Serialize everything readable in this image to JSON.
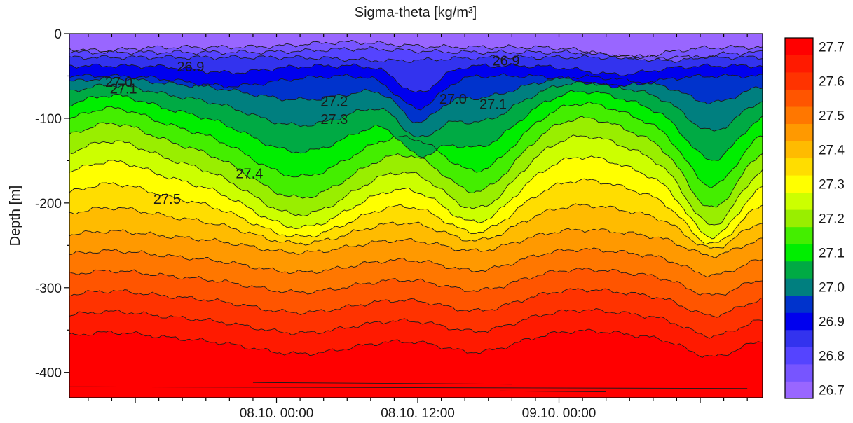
{
  "chart_data": {
    "type": "heatmap",
    "title": "Sigma-theta [kg/m³]",
    "xlabel": "",
    "ylabel": "Depth [m]",
    "ylim": [
      -430,
      0
    ],
    "yticks": [
      "0",
      "-100",
      "-200",
      "-300",
      "-400"
    ],
    "yticks_values": [
      0,
      -100,
      -200,
      -300,
      -400
    ],
    "xlim_hours": [
      -17.6,
      41.3
    ],
    "xticks": [
      "08.10. 00:00",
      "08.10. 12:00",
      "09.10. 00:00"
    ],
    "xticks_hours": [
      0,
      12,
      24
    ],
    "colorbar": {
      "levels": [
        26.7,
        26.75,
        26.8,
        26.85,
        26.9,
        26.95,
        27.0,
        27.05,
        27.1,
        27.15,
        27.2,
        27.25,
        27.3,
        27.35,
        27.4,
        27.45,
        27.5,
        27.55,
        27.6,
        27.65,
        27.7,
        27.75
      ],
      "labels": [
        "27.7",
        "27.6",
        "27.5",
        "27.4",
        "27.3",
        "27.2",
        "27.1",
        "27.0",
        "26.9",
        "26.8",
        "26.7"
      ],
      "colors": [
        "#9966ff",
        "#7755ff",
        "#5544ff",
        "#3333ee",
        "#0000ee",
        "#0033cc",
        "#007f7f",
        "#00aa44",
        "#00ee00",
        "#44ee00",
        "#99ee00",
        "#ccff00",
        "#ffff00",
        "#ffdd00",
        "#ffbb00",
        "#ff9900",
        "#ff7700",
        "#ff5500",
        "#ff3300",
        "#ff1a00",
        "#ff0000"
      ]
    },
    "contour_labels": [
      {
        "text": "26.9",
        "hour": -7.3,
        "depth": -39
      },
      {
        "text": "26.9",
        "hour": 19.5,
        "depth": -32
      },
      {
        "text": "27.0",
        "hour": -13.4,
        "depth": -57
      },
      {
        "text": "27.1",
        "hour": -13.0,
        "depth": -65
      },
      {
        "text": "27.0",
        "hour": 15.0,
        "depth": -77
      },
      {
        "text": "27.1",
        "hour": 18.4,
        "depth": -83
      },
      {
        "text": "27.2",
        "hour": 4.9,
        "depth": -80
      },
      {
        "text": "27.3",
        "hour": 4.9,
        "depth": -101
      },
      {
        "text": "27.4",
        "hour": -2.3,
        "depth": -165
      },
      {
        "text": "27.5",
        "hour": -9.3,
        "depth": -195
      }
    ]
  }
}
